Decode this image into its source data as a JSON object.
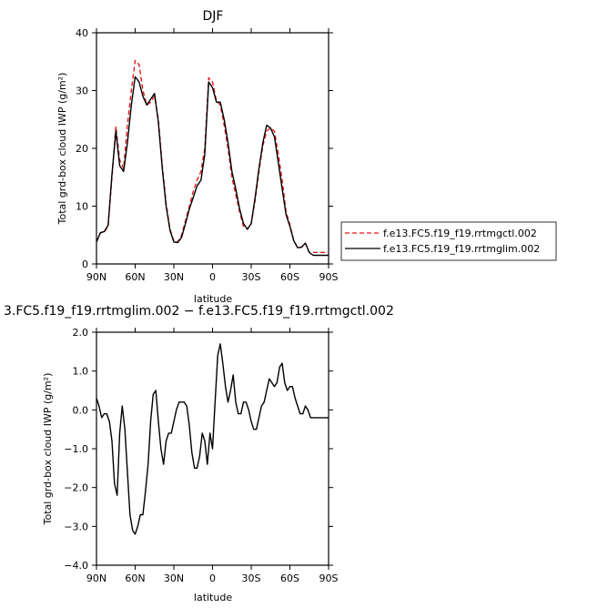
{
  "chart_data": [
    {
      "type": "line",
      "title": "DJF",
      "xlabel": "latitude",
      "ylabel": "Total grd-box cloud IWP (g/m²)",
      "xlim": [
        90,
        -90
      ],
      "ylim": [
        0,
        40
      ],
      "xticks": [
        90,
        60,
        30,
        0,
        -30,
        -60,
        -90
      ],
      "xtick_labels": [
        "90N",
        "60N",
        "30N",
        "0",
        "30S",
        "60S",
        "90S"
      ],
      "yticks": [
        0,
        10,
        20,
        30,
        40
      ],
      "ytick_labels": [
        "0",
        "10",
        "20",
        "30",
        "40"
      ],
      "legend_position": "right",
      "x": [
        90,
        87,
        84,
        81,
        78,
        75,
        72,
        69,
        66,
        63,
        60,
        57,
        54,
        51,
        48,
        45,
        42,
        39,
        36,
        33,
        30,
        27,
        24,
        21,
        18,
        15,
        12,
        9,
        6,
        3,
        0,
        -3,
        -6,
        -9,
        -12,
        -15,
        -18,
        -21,
        -24,
        -27,
        -30,
        -33,
        -36,
        -39,
        -42,
        -45,
        -48,
        -51,
        -54,
        -57,
        -60,
        -63,
        -66,
        -69,
        -72,
        -75,
        -78,
        -81,
        -84,
        -87,
        -90
      ],
      "series": [
        {
          "name": "f.e13.FC5.f19_f19.rrtmgctl.002",
          "color": "#e8191c",
          "dash": "dashed",
          "values": [
            3.8,
            5.4,
            5.5,
            6.5,
            15.0,
            23.8,
            18.0,
            16.5,
            24.0,
            30.0,
            35.2,
            34.5,
            30.0,
            27.5,
            28.0,
            29.0,
            25.0,
            17.0,
            10.5,
            6.0,
            4.0,
            3.8,
            5.0,
            7.5,
            10.0,
            12.5,
            14.5,
            16.0,
            20.0,
            32.2,
            31.5,
            28.2,
            27.5,
            24.0,
            20.0,
            15.0,
            12.0,
            9.0,
            6.5,
            6.0,
            7.0,
            11.0,
            16.0,
            20.5,
            23.0,
            23.5,
            23.0,
            19.0,
            14.5,
            9.0,
            6.8,
            4.0,
            2.8,
            2.9,
            3.6,
            2.0,
            2.0,
            2.0,
            2.0,
            2.0,
            2.0
          ]
        },
        {
          "name": "f.e13.FC5.f19_f19.rrtmglim.002",
          "color": "#000000",
          "dash": "solid",
          "values": [
            3.8,
            5.4,
            5.6,
            6.7,
            15.5,
            23.0,
            17.0,
            16.0,
            21.0,
            27.5,
            32.4,
            31.5,
            29.0,
            27.5,
            28.5,
            29.5,
            24.5,
            16.5,
            10.0,
            5.8,
            3.8,
            3.7,
            4.6,
            7.0,
            9.5,
            11.5,
            13.5,
            14.5,
            19.0,
            31.5,
            30.5,
            28.0,
            28.0,
            25.0,
            21.0,
            16.0,
            13.0,
            9.5,
            7.0,
            6.0,
            7.0,
            11.5,
            16.5,
            21.0,
            24.0,
            23.5,
            22.0,
            17.5,
            13.0,
            8.5,
            6.5,
            4.0,
            2.8,
            2.9,
            3.6,
            2.0,
            1.5,
            1.5,
            1.5,
            1.5,
            1.5
          ]
        }
      ]
    },
    {
      "type": "line",
      "title": "3.FC5.f19_f19.rrtmglim.002 − f.e13.FC5.f19_f19.rrtmgctl.002",
      "xlabel": "latitude",
      "ylabel": "Total grd-box cloud IWP (g/m²)",
      "xlim": [
        90,
        -90
      ],
      "ylim": [
        -4.0,
        2.0
      ],
      "xticks": [
        90,
        60,
        30,
        0,
        -30,
        -60,
        -90
      ],
      "xtick_labels": [
        "90N",
        "60N",
        "30N",
        "0",
        "30S",
        "60S",
        "90S"
      ],
      "yticks": [
        -4.0,
        -3.0,
        -2.0,
        -1.0,
        0.0,
        1.0,
        2.0
      ],
      "ytick_labels": [
        "−4.0",
        "−3.0",
        "−2.0",
        "−1.0",
        "0.0",
        "1.0",
        "2.0"
      ],
      "series": [
        {
          "color": "#000000",
          "dash": "solid",
          "x": [
            90,
            88,
            86,
            84,
            82,
            80,
            78,
            76,
            74,
            72,
            70,
            68,
            66,
            64,
            62,
            60,
            58,
            56,
            54,
            52,
            50,
            48,
            46,
            44,
            42,
            40,
            38,
            36,
            34,
            32,
            30,
            28,
            26,
            24,
            22,
            20,
            18,
            16,
            14,
            12,
            10,
            8,
            6,
            4,
            2,
            0,
            -2,
            -4,
            -6,
            -8,
            -10,
            -12,
            -14,
            -16,
            -18,
            -20,
            -22,
            -24,
            -26,
            -28,
            -30,
            -32,
            -34,
            -36,
            -38,
            -40,
            -42,
            -44,
            -46,
            -48,
            -50,
            -52,
            -54,
            -56,
            -58,
            -60,
            -62,
            -64,
            -66,
            -68,
            -70,
            -72,
            -74,
            -76,
            -78,
            -80,
            -82,
            -84,
            -86,
            -88,
            -90
          ],
          "values": [
            0.3,
            0.1,
            -0.2,
            -0.1,
            -0.1,
            -0.3,
            -0.8,
            -1.9,
            -2.2,
            -0.6,
            0.1,
            -0.5,
            -1.6,
            -2.7,
            -3.1,
            -3.2,
            -3.0,
            -2.7,
            -2.7,
            -2.1,
            -1.4,
            -0.3,
            0.4,
            0.5,
            -0.3,
            -1.0,
            -1.4,
            -0.8,
            -0.6,
            -0.6,
            -0.3,
            0.0,
            0.2,
            0.2,
            0.2,
            0.1,
            -0.4,
            -1.1,
            -1.5,
            -1.5,
            -1.2,
            -0.6,
            -0.8,
            -1.4,
            -0.6,
            -1.0,
            0.2,
            1.4,
            1.7,
            1.2,
            0.6,
            0.2,
            0.5,
            0.9,
            0.2,
            -0.1,
            -0.1,
            0.2,
            0.2,
            0.0,
            -0.3,
            -0.5,
            -0.5,
            -0.2,
            0.1,
            0.2,
            0.5,
            0.8,
            0.7,
            0.6,
            0.7,
            1.1,
            1.2,
            0.7,
            0.5,
            0.6,
            0.6,
            0.3,
            0.1,
            -0.1,
            -0.1,
            0.1,
            0.0,
            -0.2,
            -0.2,
            -0.2,
            -0.2,
            -0.2,
            -0.2,
            -0.2,
            -0.2
          ]
        }
      ]
    }
  ]
}
